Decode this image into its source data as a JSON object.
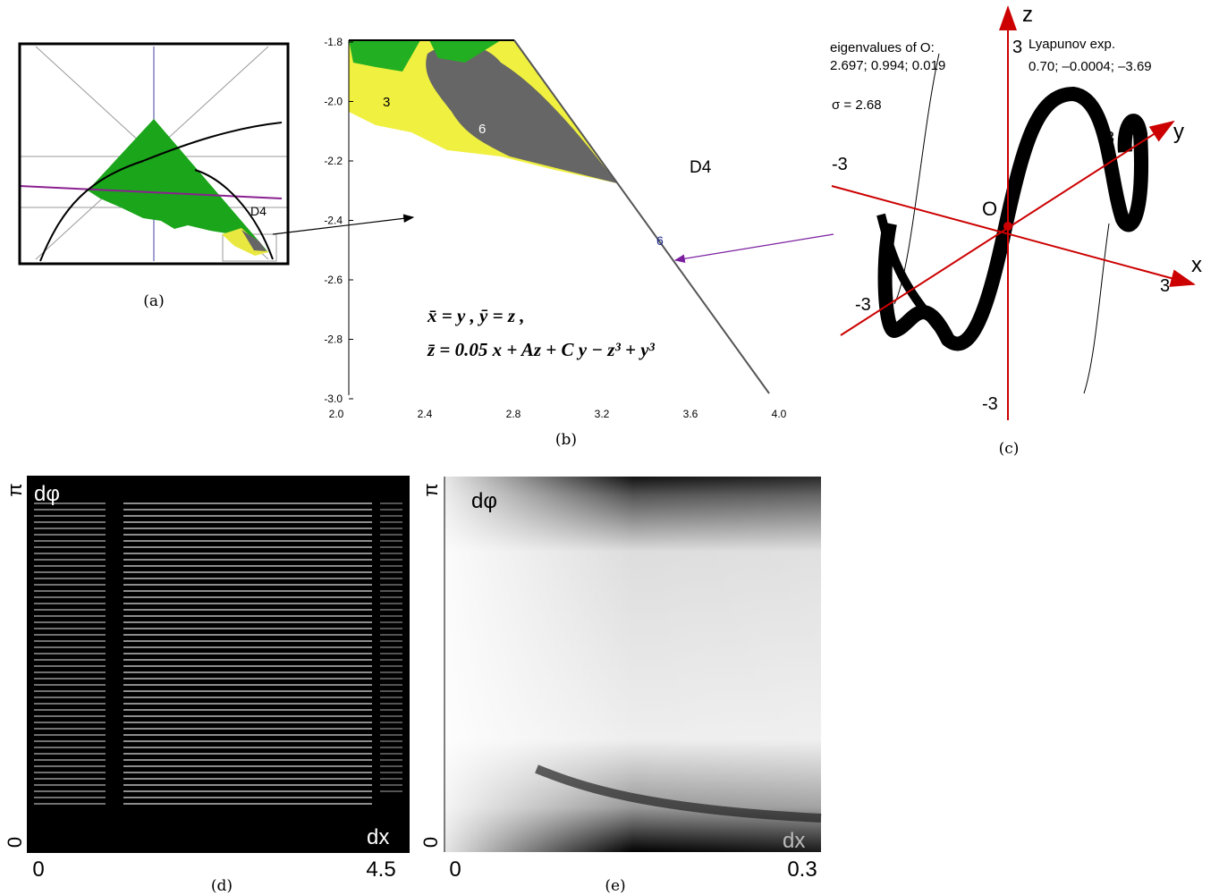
{
  "panels": {
    "a": {
      "caption": "(a)",
      "region": "D4"
    },
    "b": {
      "caption": "(b)",
      "yticks": [
        "-1.8",
        "-2.0",
        "-2.2",
        "-2.4",
        "-2.6",
        "-2.8",
        "-3.0"
      ],
      "xticks": [
        "2.0",
        "2.4",
        "2.8",
        "3.2",
        "3.6",
        "4.0"
      ],
      "labels": [
        "3",
        "6",
        "D4",
        "6"
      ],
      "equation": [
        "x̄ =  y ,  ȳ = z ,",
        "z̄ = 0.05 x + Az + C y − z³ + y³"
      ]
    },
    "c": {
      "caption": "(c)",
      "axes": [
        "z",
        "y",
        "x",
        "O"
      ],
      "ticks": [
        "3",
        "3",
        "3",
        "-3",
        "-3",
        "-3"
      ],
      "eigen_title": "eigenvalues of O:",
      "eigen_values": "2.697; 0.994; 0.019",
      "sigma": "σ = 2.68",
      "lyap_title": "Lyapunov exp.",
      "lyap_values": "0.70; –0.0004; –3.69"
    },
    "d": {
      "caption": "(d)",
      "y_label": "dφ",
      "x_label": "dx",
      "y_min": "0",
      "y_max": "π",
      "x_min": "0",
      "x_max": "4.5"
    },
    "e": {
      "caption": "(e)",
      "y_label": "dφ",
      "x_label": "dx",
      "y_min": "0",
      "y_max": "π",
      "x_min": "0",
      "x_max": "0.3"
    }
  }
}
